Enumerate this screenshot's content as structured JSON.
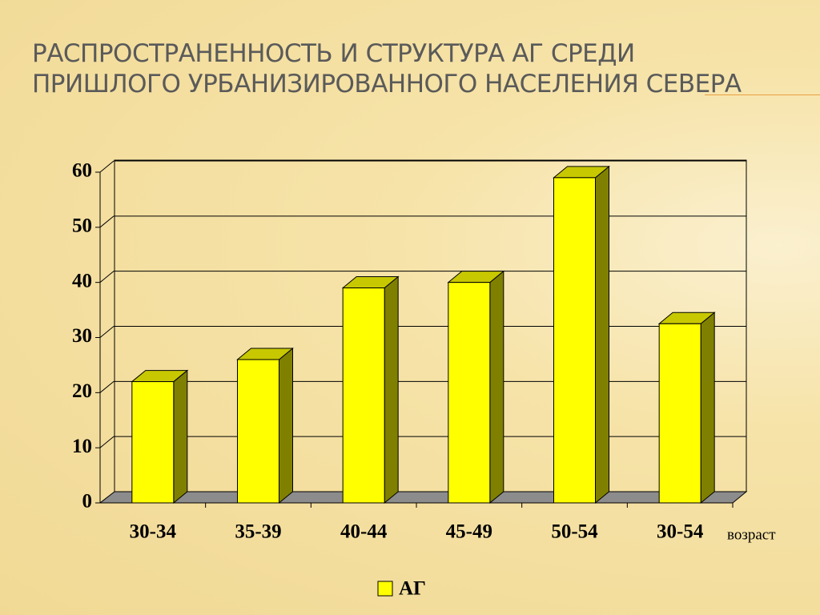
{
  "chart_data": {
    "type": "bar3d",
    "title": "РАСПРОСТРАНЕННОСТЬ И СТРУКТУРА АГ СРЕДИ ПРИШЛОГО УРБАНИЗИРОВАННОГО НАСЕЛЕНИЯ СЕВЕРА",
    "x_label": "возраст",
    "categories": [
      "30-34",
      "35-39",
      "40-44",
      "45-49",
      "50-54",
      "30-54"
    ],
    "series": [
      {
        "name": "АГ",
        "color": "#ffff00",
        "values": [
          22,
          26,
          39,
          40,
          59,
          32.5
        ]
      }
    ],
    "ylim": [
      0,
      60
    ],
    "yticks": [
      0,
      10,
      20,
      30,
      40,
      50,
      60
    ],
    "grid": true,
    "legend": "bottom"
  }
}
